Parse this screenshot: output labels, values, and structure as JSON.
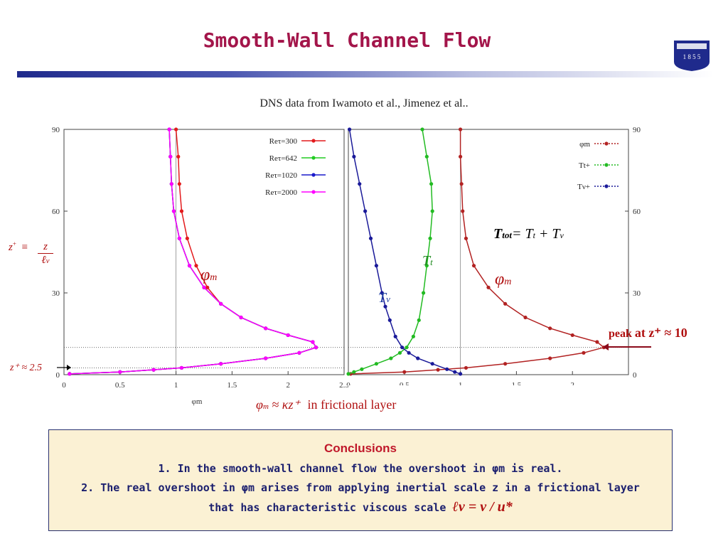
{
  "header": {
    "title": "Smooth-Wall Channel Flow",
    "logo_text": "1 8 5 5"
  },
  "subtitle": "DNS data from Iwamoto et al., Jimenez et al..",
  "chart_data": [
    {
      "type": "line",
      "xlabel": "φm",
      "ylabel": "",
      "xlim": [
        0,
        2.5
      ],
      "ylim": [
        0,
        90
      ],
      "x_ticks": [
        "0",
        "0.5",
        "1",
        "1.5",
        "2",
        "2.5"
      ],
      "y_ticks": [
        "0",
        "30",
        "60",
        "90"
      ],
      "reference_lines": {
        "x": 1,
        "y": [
          10,
          2.5
        ]
      },
      "legend": "top-right",
      "series": [
        {
          "name": "Reτ=300",
          "color": "#e31a1c",
          "points": [
            [
              0.05,
              0.3
            ],
            [
              0.5,
              1
            ],
            [
              0.8,
              1.8
            ],
            [
              1.05,
              2.5
            ],
            [
              1.4,
              4
            ],
            [
              1.8,
              6
            ],
            [
              2.1,
              8
            ],
            [
              2.25,
              10
            ],
            [
              2.22,
              12
            ],
            [
              2.0,
              14.5
            ],
            [
              1.8,
              17
            ],
            [
              1.58,
              21
            ],
            [
              1.4,
              26
            ],
            [
              1.28,
              32
            ],
            [
              1.18,
              40
            ],
            [
              1.1,
              50
            ],
            [
              1.05,
              60
            ],
            [
              1.03,
              70
            ],
            [
              1.02,
              80
            ],
            [
              1.0,
              90
            ]
          ]
        },
        {
          "name": "Reτ=642",
          "color": "#22cc22",
          "points": [
            [
              0.05,
              0.3
            ],
            [
              0.5,
              1
            ],
            [
              0.8,
              1.8
            ],
            [
              1.05,
              2.5
            ],
            [
              1.4,
              4
            ],
            [
              1.8,
              6
            ],
            [
              2.1,
              8
            ],
            [
              2.25,
              10
            ],
            [
              2.22,
              12
            ],
            [
              2.0,
              14.5
            ],
            [
              1.8,
              17
            ],
            [
              1.58,
              21
            ],
            [
              1.4,
              26
            ],
            [
              1.25,
              32
            ],
            [
              1.12,
              40
            ],
            [
              1.03,
              50
            ],
            [
              0.98,
              60
            ],
            [
              0.96,
              70
            ],
            [
              0.95,
              80
            ],
            [
              0.94,
              90
            ]
          ]
        },
        {
          "name": "Reτ=1020",
          "color": "#1a1acc",
          "points": [
            [
              0.05,
              0.3
            ],
            [
              0.5,
              1
            ],
            [
              0.8,
              1.8
            ],
            [
              1.05,
              2.5
            ],
            [
              1.4,
              4
            ],
            [
              1.8,
              6
            ],
            [
              2.1,
              8
            ],
            [
              2.25,
              10
            ],
            [
              2.22,
              12
            ],
            [
              2.0,
              14.5
            ],
            [
              1.8,
              17
            ],
            [
              1.58,
              21
            ],
            [
              1.4,
              26
            ],
            [
              1.25,
              32
            ],
            [
              1.12,
              40
            ],
            [
              1.03,
              50
            ],
            [
              0.98,
              60
            ],
            [
              0.96,
              70
            ],
            [
              0.95,
              80
            ],
            [
              0.94,
              90
            ]
          ]
        },
        {
          "name": "Reτ=2000",
          "color": "#ff00ff",
          "points": [
            [
              0.05,
              0.3
            ],
            [
              0.5,
              1
            ],
            [
              0.8,
              1.8
            ],
            [
              1.05,
              2.5
            ],
            [
              1.4,
              4
            ],
            [
              1.8,
              6
            ],
            [
              2.1,
              8
            ],
            [
              2.25,
              10
            ],
            [
              2.22,
              12
            ],
            [
              2.0,
              14.5
            ],
            [
              1.8,
              17
            ],
            [
              1.58,
              21
            ],
            [
              1.4,
              26
            ],
            [
              1.25,
              32
            ],
            [
              1.12,
              40
            ],
            [
              1.03,
              50
            ],
            [
              0.98,
              60
            ],
            [
              0.96,
              70
            ],
            [
              0.95,
              80
            ],
            [
              0.94,
              90
            ]
          ]
        }
      ]
    },
    {
      "type": "line",
      "xlabel": "",
      "ylabel": "",
      "xlim": [
        0,
        2.5
      ],
      "ylim": [
        0,
        90
      ],
      "x_ticks": [
        "0",
        "0.5",
        "1",
        "1.5",
        "2"
      ],
      "y_ticks": [
        "0",
        "30",
        "60",
        "90"
      ],
      "reference_lines": {
        "x": 1,
        "y": [
          10
        ]
      },
      "legend": "top-right",
      "series": [
        {
          "name": "φm",
          "color": "#b22222",
          "points": [
            [
              0.02,
              0.3
            ],
            [
              0.5,
              1
            ],
            [
              0.8,
              1.8
            ],
            [
              1.05,
              2.5
            ],
            [
              1.4,
              4
            ],
            [
              1.8,
              6
            ],
            [
              2.1,
              8
            ],
            [
              2.28,
              10
            ],
            [
              2.22,
              12
            ],
            [
              2.0,
              14.5
            ],
            [
              1.8,
              17
            ],
            [
              1.58,
              21
            ],
            [
              1.4,
              26
            ],
            [
              1.25,
              32
            ],
            [
              1.12,
              40
            ],
            [
              1.05,
              50
            ],
            [
              1.02,
              60
            ],
            [
              1.01,
              70
            ],
            [
              1.0,
              80
            ],
            [
              1.0,
              90
            ]
          ]
        },
        {
          "name": "Tt+",
          "color": "#22bb22",
          "points": [
            [
              0.0,
              0.3
            ],
            [
              0.05,
              1
            ],
            [
              0.12,
              2
            ],
            [
              0.25,
              4
            ],
            [
              0.38,
              6
            ],
            [
              0.46,
              8
            ],
            [
              0.52,
              10
            ],
            [
              0.58,
              14
            ],
            [
              0.63,
              20
            ],
            [
              0.67,
              30
            ],
            [
              0.7,
              40
            ],
            [
              0.73,
              50
            ],
            [
              0.75,
              60
            ],
            [
              0.74,
              70
            ],
            [
              0.7,
              80
            ],
            [
              0.66,
              90
            ]
          ]
        },
        {
          "name": "Tν+",
          "color": "#1a1a99",
          "points": [
            [
              1.0,
              0.3
            ],
            [
              0.95,
              1
            ],
            [
              0.88,
              2
            ],
            [
              0.75,
              4
            ],
            [
              0.62,
              6
            ],
            [
              0.54,
              8
            ],
            [
              0.48,
              10
            ],
            [
              0.42,
              14
            ],
            [
              0.37,
              20
            ],
            [
              0.33,
              25
            ],
            [
              0.3,
              30
            ],
            [
              0.25,
              40
            ],
            [
              0.2,
              50
            ],
            [
              0.15,
              60
            ],
            [
              0.1,
              70
            ],
            [
              0.05,
              80
            ],
            [
              0.01,
              90
            ]
          ]
        }
      ]
    }
  ],
  "annotations": {
    "zplus_def_left": "z",
    "zplus_def_sup": "+",
    "zplus_def_equiv": "≡",
    "zplus_def_num": "z",
    "zplus_def_den": "ℓ",
    "zplus_def_den_sub": "ν",
    "phi_m_left": "φ",
    "phi_m_left_sub": "m",
    "zplus_approx": "z⁺ ≈ 2.5",
    "phi_m_approx_a": "φ",
    "phi_m_approx_sub": "m",
    "phi_m_approx_b": "≈ κz⁺",
    "phi_m_approx_text": "in frictional layer",
    "t_tot": "T",
    "t_tot_sub": "tot",
    "t_tot_rhs": "= T",
    "t_tot_rhs_sub": "t",
    "t_tot_plus": "+ T",
    "t_tot_plus_sub": "ν",
    "t_t": "T",
    "t_t_sub": "t",
    "t_nu": "T",
    "t_nu_sub": "ν",
    "phi_m_right": "φ",
    "phi_m_right_sub": "m",
    "peak_a": "peak",
    "peak_b": "at z⁺ ≈ 10"
  },
  "conclusions": {
    "heading": "Conclusions",
    "line1": "1. In the smooth-wall channel flow the overshoot in φm is real.",
    "line2": "2. The real overshoot in φm arises from applying inertial scale z in a frictional layer",
    "line3": "that has characteristic viscous scale",
    "line3_math": "ℓν = ν / u*"
  }
}
